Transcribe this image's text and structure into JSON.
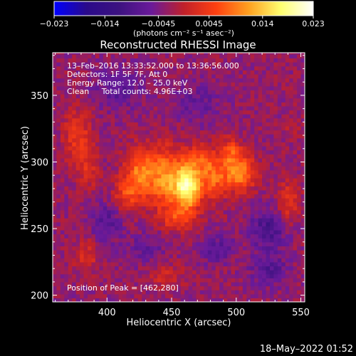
{
  "colorbar": {
    "ticks": [
      "−0.023",
      "−0.014",
      "−0.0045",
      "0.0045",
      "0.014",
      "0.023"
    ],
    "tick_values": [
      -0.023,
      -0.014,
      -0.0045,
      0.0045,
      0.014,
      0.023
    ],
    "range": [
      -0.023,
      0.023
    ],
    "unit_label": "(photons cm⁻² s⁻¹ asec⁻²)",
    "colors": [
      "#0000ff",
      "#2a0a8a",
      "#3c1280",
      "#6a1a9a",
      "#c0202a",
      "#ff4010",
      "#ffa020",
      "#ffff70",
      "#ffffff"
    ]
  },
  "image": {
    "title": "Reconstructed RHESSI Image",
    "info_lines": [
      "13–Feb–2016 13:33:52.000 to 13:36:56.000",
      "Detectors: 1F 5F 7F, Att 0",
      "Energy Range: 12.0 – 25.0 keV",
      "Clean     Total counts: 4.96E+03"
    ],
    "peak_label": "Position of Peak = [462,280]"
  },
  "footer_timestamp": "18–May–2022 01:52",
  "chart_data": {
    "type": "heatmap",
    "title": "Reconstructed RHESSI Image",
    "xlabel": "Heliocentric X (arcsec)",
    "ylabel": "Heliocentric Y (arcsec)",
    "xlim": [
      358,
      553
    ],
    "ylim": [
      195,
      382
    ],
    "x_ticks": [
      400,
      450,
      500,
      550
    ],
    "y_ticks": [
      200,
      250,
      300,
      350
    ],
    "peak": {
      "x": 462,
      "y": 280
    },
    "value_range": [
      -0.023,
      0.023
    ],
    "sources": [
      {
        "x": 462,
        "y": 282,
        "amp": 0.023,
        "sx": 7,
        "sy": 12
      },
      {
        "x": 445,
        "y": 288,
        "amp": 0.013,
        "sx": 8,
        "sy": 16
      },
      {
        "x": 426,
        "y": 292,
        "amp": 0.012,
        "sx": 8,
        "sy": 13
      },
      {
        "x": 415,
        "y": 276,
        "amp": 0.007,
        "sx": 7,
        "sy": 9
      },
      {
        "x": 482,
        "y": 290,
        "amp": 0.011,
        "sx": 8,
        "sy": 12
      },
      {
        "x": 503,
        "y": 292,
        "amp": 0.014,
        "sx": 8,
        "sy": 9
      },
      {
        "x": 496,
        "y": 308,
        "amp": 0.008,
        "sx": 6,
        "sy": 7
      },
      {
        "x": 470,
        "y": 304,
        "amp": 0.006,
        "sx": 7,
        "sy": 7
      },
      {
        "x": 455,
        "y": 258,
        "amp": 0.007,
        "sx": 9,
        "sy": 6
      },
      {
        "x": 377,
        "y": 320,
        "amp": 0.007,
        "sx": 7,
        "sy": 14
      },
      {
        "x": 385,
        "y": 295,
        "amp": 0.005,
        "sx": 6,
        "sy": 10
      },
      {
        "x": 384,
        "y": 230,
        "amp": 0.005,
        "sx": 7,
        "sy": 8
      },
      {
        "x": 540,
        "y": 270,
        "amp": 0.006,
        "sx": 6,
        "sy": 12
      },
      {
        "x": 545,
        "y": 325,
        "amp": 0.003,
        "sx": 5,
        "sy": 5
      },
      {
        "x": 445,
        "y": 215,
        "amp": 0.004,
        "sx": 10,
        "sy": 6
      },
      {
        "x": 410,
        "y": 355,
        "amp": -0.005,
        "sx": 12,
        "sy": 10
      },
      {
        "x": 525,
        "y": 250,
        "amp": -0.007,
        "sx": 10,
        "sy": 10
      },
      {
        "x": 525,
        "y": 220,
        "amp": -0.006,
        "sx": 9,
        "sy": 8
      },
      {
        "x": 400,
        "y": 255,
        "amp": -0.005,
        "sx": 8,
        "sy": 10
      },
      {
        "x": 430,
        "y": 235,
        "amp": -0.004,
        "sx": 10,
        "sy": 8
      },
      {
        "x": 485,
        "y": 235,
        "amp": -0.005,
        "sx": 9,
        "sy": 7
      },
      {
        "x": 470,
        "y": 345,
        "amp": -0.004,
        "sx": 12,
        "sy": 9
      }
    ]
  }
}
